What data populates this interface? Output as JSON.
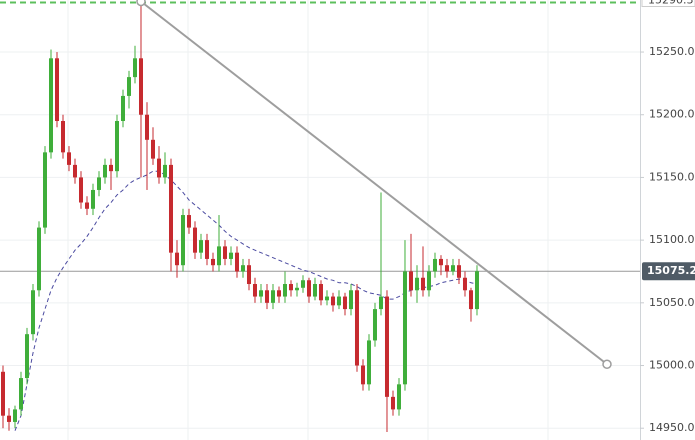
{
  "chart_data": {
    "type": "candlestick",
    "up_color": "#3fae3a",
    "down_color": "#c62a2f",
    "xlim": [
      -0.5,
      106.17
    ],
    "ylim": [
      14940.6,
      15291.5
    ],
    "yticks": [
      {
        "value": 14950,
        "label": "14950.0"
      },
      {
        "value": 15000,
        "label": "15000.0"
      },
      {
        "value": 15050,
        "label": "15050.0"
      },
      {
        "value": 15100,
        "label": "15100.0"
      },
      {
        "value": 15150,
        "label": "15150.0"
      },
      {
        "value": 15200,
        "label": "15200.0"
      },
      {
        "value": 15250,
        "label": "15250.0"
      }
    ],
    "grid": true,
    "candles": [
      [
        14995,
        15000,
        14950,
        14960
      ],
      [
        14960,
        14966,
        14948,
        14955
      ],
      [
        14955,
        14968,
        14950,
        14965
      ],
      [
        14965,
        14995,
        14960,
        14990
      ],
      [
        14990,
        15030,
        14985,
        15025
      ],
      [
        15025,
        15065,
        15020,
        15060
      ],
      [
        15060,
        15115,
        15055,
        15110
      ],
      [
        15110,
        15175,
        15105,
        15170
      ],
      [
        15170,
        15252,
        15165,
        15245
      ],
      [
        15245,
        15250,
        15190,
        15195
      ],
      [
        15195,
        15200,
        15165,
        15170
      ],
      [
        15170,
        15175,
        15155,
        15160
      ],
      [
        15160,
        15165,
        15145,
        15150
      ],
      [
        15150,
        15155,
        15125,
        15130
      ],
      [
        15130,
        15135,
        15120,
        15125
      ],
      [
        15125,
        15145,
        15120,
        15140
      ],
      [
        15140,
        15155,
        15135,
        15150
      ],
      [
        15150,
        15165,
        15145,
        15160
      ],
      [
        15160,
        15165,
        15140,
        15155
      ],
      [
        15155,
        15200,
        15150,
        15195
      ],
      [
        15195,
        15220,
        15190,
        15215
      ],
      [
        15215,
        15235,
        15205,
        15230
      ],
      [
        15230,
        15255,
        15225,
        15245
      ],
      [
        15245,
        15290.3,
        15150,
        15200
      ],
      [
        15200,
        15210,
        15140,
        15180
      ],
      [
        15180,
        15190,
        15160,
        15165
      ],
      [
        15165,
        15175,
        15145,
        15150
      ],
      [
        15150,
        15170,
        15145,
        15160
      ],
      [
        15160,
        15165,
        15075,
        15090
      ],
      [
        15090,
        15100,
        15070,
        15080
      ],
      [
        15080,
        15125,
        15075,
        15120
      ],
      [
        15120,
        15125,
        15105,
        15110
      ],
      [
        15110,
        15115,
        15085,
        15090
      ],
      [
        15090,
        15105,
        15085,
        15100
      ],
      [
        15100,
        15105,
        15080,
        15085
      ],
      [
        15085,
        15090,
        15075,
        15080
      ],
      [
        15080,
        15120,
        15075,
        15095
      ],
      [
        15095,
        15100,
        15080,
        15085
      ],
      [
        15085,
        15095,
        15080,
        15090
      ],
      [
        15090,
        15095,
        15070,
        15075
      ],
      [
        15075,
        15085,
        15070,
        15080
      ],
      [
        15080,
        15085,
        15060,
        15065
      ],
      [
        15065,
        15070,
        15050,
        15055
      ],
      [
        15055,
        15065,
        15050,
        15060
      ],
      [
        15060,
        15065,
        15045,
        15050
      ],
      [
        15050,
        15065,
        15045,
        15060
      ],
      [
        15060,
        15063,
        15050,
        15055
      ],
      [
        15055,
        15075,
        15050,
        15065
      ],
      [
        15065,
        15068,
        15055,
        15060
      ],
      [
        15060,
        15066,
        15055,
        15062
      ],
      [
        15062,
        15072,
        15058,
        15068
      ],
      [
        15068,
        15070,
        15050,
        15055
      ],
      [
        15055,
        15070,
        15052,
        15065
      ],
      [
        15065,
        15068,
        15048,
        15052
      ],
      [
        15052,
        15060,
        15048,
        15055
      ],
      [
        15055,
        15058,
        15043,
        15048
      ],
      [
        15048,
        15060,
        15045,
        15055
      ],
      [
        15055,
        15058,
        15040,
        15045
      ],
      [
        15045,
        15065,
        15040,
        15060
      ],
      [
        15060,
        15065,
        14995,
        15000
      ],
      [
        15000,
        15005,
        14980,
        14985
      ],
      [
        14985,
        15025,
        14980,
        15020
      ],
      [
        15020,
        15050,
        15015,
        15045
      ],
      [
        15045,
        15138,
        15040,
        15055
      ],
      [
        15055,
        15060,
        14947,
        14975
      ],
      [
        14975,
        14980,
        14960,
        14965
      ],
      [
        14965,
        14990,
        14960,
        14985
      ],
      [
        14985,
        15100,
        14980,
        15075
      ],
      [
        15075,
        15105,
        15055,
        15060
      ],
      [
        15060,
        15080,
        15050,
        15070
      ],
      [
        15070,
        15095,
        15055,
        15060
      ],
      [
        15060,
        15080,
        15055,
        15075
      ],
      [
        15075,
        15090,
        15070,
        15085
      ],
      [
        15085,
        15088,
        15072,
        15080
      ],
      [
        15080,
        15085,
        15070,
        15075
      ],
      [
        15075,
        15085,
        15072,
        15080
      ],
      [
        15080,
        15085,
        15065,
        15070
      ],
      [
        15070,
        15075,
        15055,
        15060
      ],
      [
        15060,
        15062,
        15035,
        15045
      ],
      [
        15045,
        15080,
        15040,
        15075.2
      ]
    ],
    "ma": {
      "color": "#4a4aa0",
      "values": [
        null,
        null,
        14948,
        14960,
        14985,
        15010,
        15030,
        15045,
        15060,
        15070,
        15078,
        15085,
        15092,
        15097,
        15103,
        15110,
        15118,
        15125,
        15130,
        15136,
        15140,
        15145,
        15148,
        15150,
        15152,
        15155,
        15155,
        15152,
        15148,
        15143,
        15138,
        15132,
        15128,
        15124,
        15120,
        15116,
        15112,
        15107,
        15103,
        15100,
        15097,
        15094,
        15092,
        15090,
        15088,
        15086,
        15084,
        15082,
        15080,
        15078,
        15076,
        15075,
        15073,
        15071,
        15069,
        15068,
        15066,
        15066,
        15065,
        15063,
        15060,
        15058,
        15057,
        15056,
        15053,
        15053,
        15055,
        15058,
        15060,
        15061,
        15062,
        15063,
        15064,
        15066,
        15067,
        15068,
        15069,
        15068,
        15066,
        15065
      ]
    },
    "trendline": {
      "color": "#9e9e9e",
      "x": [
        23,
        100.67
      ],
      "y": [
        15290.3,
        15001
      ]
    },
    "high_line": {
      "value": 15290.3,
      "color": "#5cbf5c"
    },
    "price_line": {
      "value": 15075.2,
      "color": "#999999",
      "label_color": "#4f5b66"
    }
  }
}
